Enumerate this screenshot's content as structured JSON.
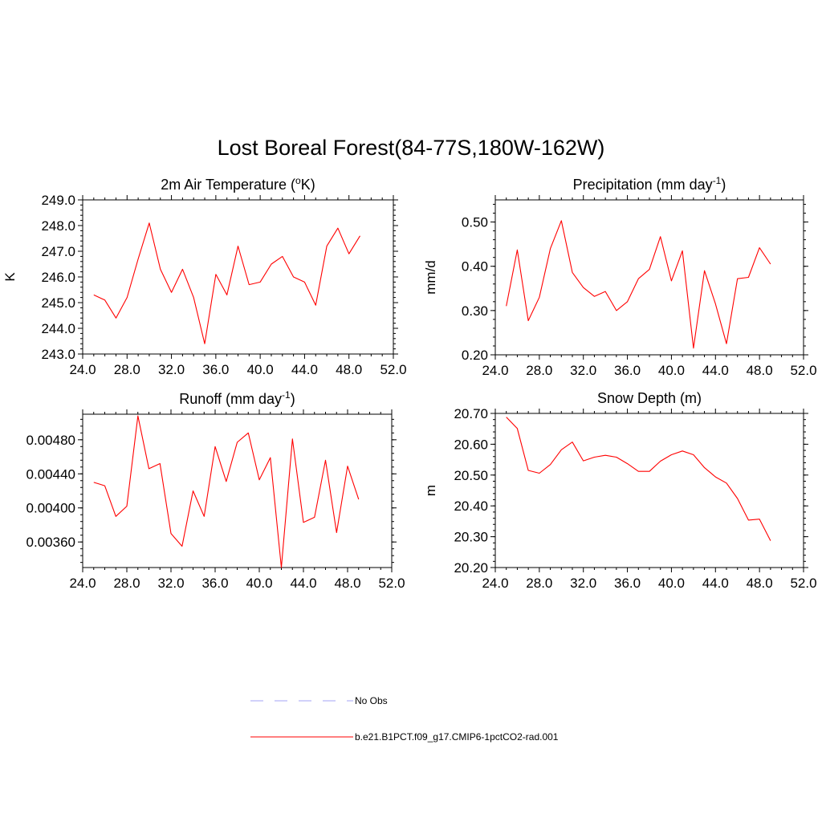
{
  "title": "Lost Boreal Forest(84-77S,180W-162W)",
  "legend": {
    "items": [
      {
        "label": "No Obs",
        "color": "#a3a3f5",
        "dash": "dashed"
      },
      {
        "label": "b.e21.B1PCT.f09_g17.CMIP6-1pctCO2-rad.001",
        "color": "#ff0000",
        "dash": "solid"
      }
    ]
  },
  "chart_data": [
    {
      "type": "line",
      "title_prefix": "2m Air Temperature (",
      "title_sup": "o",
      "title_suffix": "K)",
      "ylabel": "K",
      "xlim": [
        24,
        52
      ],
      "ylim": [
        243,
        249
      ],
      "xticks": [
        24,
        28,
        32,
        36,
        40,
        44,
        48,
        52
      ],
      "xtick_labels": [
        "24.0",
        "28.0",
        "32.0",
        "36.0",
        "40.0",
        "44.0",
        "48.0",
        "52.0"
      ],
      "yticks": [
        243,
        244,
        245,
        246,
        247,
        248,
        249
      ],
      "ytick_labels": [
        "243.0",
        "244.0",
        "245.0",
        "246.0",
        "247.0",
        "248.0",
        "249.0"
      ],
      "x": [
        25,
        26,
        27,
        28,
        29,
        30,
        31,
        32,
        33,
        34,
        35,
        36,
        37,
        38,
        39,
        40,
        41,
        42,
        43,
        44,
        45,
        46,
        47,
        48,
        49
      ],
      "series": [
        {
          "color": "#ff0000",
          "values": [
            245.3,
            245.1,
            244.4,
            245.2,
            246.7,
            248.1,
            246.3,
            245.4,
            246.3,
            245.2,
            243.4,
            246.1,
            245.3,
            247.2,
            245.7,
            245.8,
            246.5,
            246.8,
            246.0,
            245.8,
            244.9,
            247.2,
            247.9,
            246.9,
            247.6
          ]
        }
      ]
    },
    {
      "type": "line",
      "title_prefix": "Precipitation (mm day",
      "title_sup": "-1",
      "title_suffix": ")",
      "ylabel": "mm/d",
      "xlim": [
        24,
        52
      ],
      "ylim": [
        0.2,
        0.55
      ],
      "xticks": [
        24,
        28,
        32,
        36,
        40,
        44,
        48,
        52
      ],
      "xtick_labels": [
        "24.0",
        "28.0",
        "32.0",
        "36.0",
        "40.0",
        "44.0",
        "48.0",
        "52.0"
      ],
      "yticks": [
        0.2,
        0.3,
        0.4,
        0.5
      ],
      "ytick_labels": [
        "0.20",
        "0.30",
        "0.40",
        "0.50"
      ],
      "x": [
        25,
        26,
        27,
        28,
        29,
        30,
        31,
        32,
        33,
        34,
        35,
        36,
        37,
        38,
        39,
        40,
        41,
        42,
        43,
        44,
        45,
        46,
        47,
        48,
        49
      ],
      "series": [
        {
          "color": "#ff0000",
          "values": [
            0.31,
            0.437,
            0.277,
            0.33,
            0.44,
            0.503,
            0.386,
            0.352,
            0.332,
            0.343,
            0.3,
            0.32,
            0.372,
            0.393,
            0.467,
            0.367,
            0.435,
            0.215,
            0.39,
            0.315,
            0.225,
            0.372,
            0.375,
            0.442,
            0.405
          ]
        }
      ]
    },
    {
      "type": "line",
      "title_prefix": "Runoff (mm day",
      "title_sup": "-1",
      "title_suffix": ")",
      "ylabel": "",
      "xlim": [
        24,
        52
      ],
      "ylim": [
        0.0033,
        0.0051
      ],
      "xticks": [
        24,
        28,
        32,
        36,
        40,
        44,
        48,
        52
      ],
      "xtick_labels": [
        "24.0",
        "28.0",
        "32.0",
        "36.0",
        "40.0",
        "44.0",
        "48.0",
        "52.0"
      ],
      "yticks": [
        0.0036,
        0.004,
        0.0044,
        0.0048
      ],
      "ytick_labels": [
        "0.00360",
        "0.00400",
        "0.00440",
        "0.00480"
      ],
      "x": [
        25,
        26,
        27,
        28,
        29,
        30,
        31,
        32,
        33,
        34,
        35,
        36,
        37,
        38,
        39,
        40,
        41,
        42,
        43,
        44,
        45,
        46,
        47,
        48,
        49
      ],
      "series": [
        {
          "color": "#ff0000",
          "values": [
            0.0043,
            0.00426,
            0.0039,
            0.00402,
            0.00508,
            0.00446,
            0.00452,
            0.0037,
            0.00355,
            0.0042,
            0.0039,
            0.00472,
            0.00431,
            0.00477,
            0.00488,
            0.00433,
            0.00459,
            0.0033,
            0.00481,
            0.00383,
            0.00389,
            0.00456,
            0.00371,
            0.00449,
            0.0041
          ]
        }
      ]
    },
    {
      "type": "line",
      "title_prefix": "Snow Depth (m)",
      "title_sup": "",
      "title_suffix": "",
      "ylabel": "m",
      "xlim": [
        24,
        52
      ],
      "ylim": [
        20.2,
        20.7
      ],
      "xticks": [
        24,
        28,
        32,
        36,
        40,
        44,
        48,
        52
      ],
      "xtick_labels": [
        "24.0",
        "28.0",
        "32.0",
        "36.0",
        "40.0",
        "44.0",
        "48.0",
        "52.0"
      ],
      "yticks": [
        20.2,
        20.3,
        20.4,
        20.5,
        20.6,
        20.7
      ],
      "ytick_labels": [
        "20.20",
        "20.30",
        "20.40",
        "20.50",
        "20.60",
        "20.70"
      ],
      "x": [
        25,
        26,
        27,
        28,
        29,
        30,
        31,
        32,
        33,
        34,
        35,
        36,
        37,
        38,
        39,
        40,
        41,
        42,
        43,
        44,
        45,
        46,
        47,
        48,
        49
      ],
      "series": [
        {
          "color": "#ff0000",
          "values": [
            20.688,
            20.651,
            20.515,
            20.506,
            20.534,
            20.582,
            20.607,
            20.546,
            20.558,
            20.564,
            20.558,
            20.537,
            20.512,
            20.512,
            20.545,
            20.566,
            20.578,
            20.566,
            20.524,
            20.494,
            20.474,
            20.424,
            20.354,
            20.357,
            20.287
          ]
        }
      ]
    }
  ]
}
